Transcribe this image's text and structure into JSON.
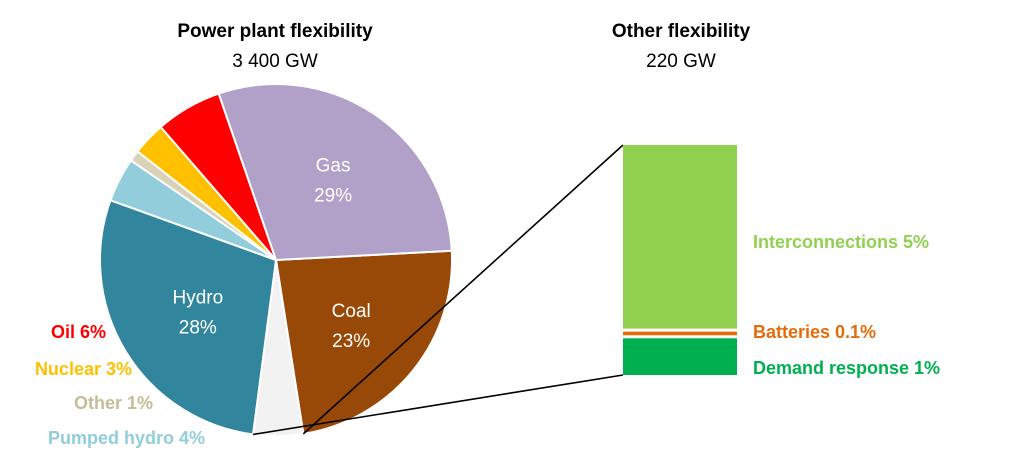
{
  "chart_data": [
    {
      "type": "pie",
      "title": "Power plant flexibility",
      "subtitle": "3 400 GW",
      "slices": [
        {
          "name": "Coal",
          "value": 23,
          "label": "23%",
          "color": "#984807",
          "label_inside": true
        },
        {
          "name": "",
          "value": 4.5,
          "label": "",
          "color": "#f2f2f2",
          "label_inside": false
        },
        {
          "name": "Hydro",
          "value": 28,
          "label": "28%",
          "color": "#31859c",
          "label_inside": true
        },
        {
          "name": "Pumped hydro",
          "value": 4,
          "label": "Pumped hydro 4%",
          "color": "#92cddc",
          "label_inside": false
        },
        {
          "name": "Other",
          "value": 1,
          "label": "Other 1%",
          "color": "#d9d2b8",
          "label_inside": false
        },
        {
          "name": "Nuclear",
          "value": 3,
          "label": "Nuclear 3%",
          "color": "#ffc000",
          "label_inside": false
        },
        {
          "name": "Oil",
          "value": 6,
          "label": "Oil 6%",
          "color": "#ff0000",
          "label_inside": false
        },
        {
          "name": "Gas",
          "value": 29,
          "label": "29%",
          "color": "#b1a0c7",
          "label_inside": true
        }
      ]
    },
    {
      "type": "bar",
      "stacked": true,
      "title": "Other flexibility",
      "subtitle": "220 GW",
      "segments": [
        {
          "name": "Demand response",
          "value": 1,
          "label": "Demand response  1%",
          "color": "#00b050"
        },
        {
          "name": "Batteries",
          "value": 0.1,
          "label": "Batteries 0.1%",
          "color": "#e46c0a"
        },
        {
          "name": "Interconnections",
          "value": 5,
          "label": "Interconnections  5%",
          "color": "#92d050"
        }
      ]
    }
  ]
}
